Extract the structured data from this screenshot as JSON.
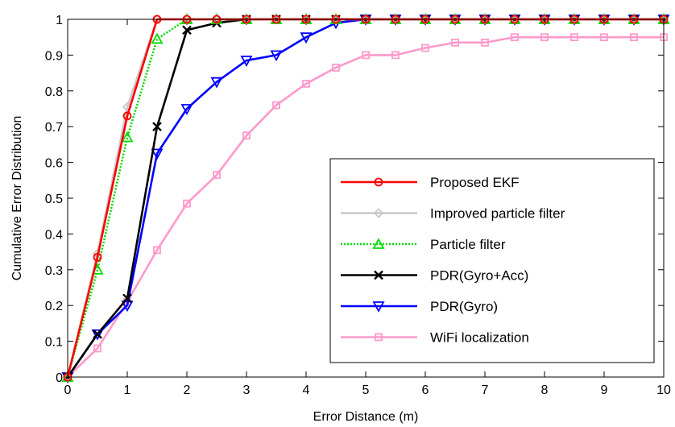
{
  "chart_data": {
    "type": "line",
    "xlabel": "Error Distance (m)",
    "ylabel": "Cumulative Error Distribution",
    "xlim": [
      0,
      10
    ],
    "ylim": [
      0,
      1
    ],
    "xticks": [
      0,
      1,
      2,
      3,
      4,
      5,
      6,
      7,
      8,
      9,
      10
    ],
    "yticks": [
      0,
      0.1,
      0.2,
      0.3,
      0.4,
      0.5,
      0.6,
      0.7,
      0.8,
      0.9,
      1
    ],
    "grid": false,
    "legend_position": "bottom-right",
    "series": [
      {
        "name": "Proposed EKF",
        "color": "#ff0000",
        "marker": "circle",
        "dash": "solid",
        "x": [
          0,
          0.5,
          1,
          1.5,
          2,
          2.5,
          3,
          3.5,
          4,
          4.5,
          5,
          5.5,
          6,
          6.5,
          7,
          7.5,
          8,
          8.5,
          9,
          9.5,
          10
        ],
        "y": [
          0,
          0.335,
          0.73,
          1,
          1,
          1,
          1,
          1,
          1,
          1,
          1,
          1,
          1,
          1,
          1,
          1,
          1,
          1,
          1,
          1,
          1
        ]
      },
      {
        "name": "Improved particle filter",
        "color": "#c8c8c8",
        "marker": "diamond",
        "dash": "solid",
        "x": [
          0,
          0.5,
          1,
          1.5,
          2,
          2.5,
          3,
          3.5,
          4,
          4.5,
          5,
          5.5,
          6,
          6.5,
          7,
          7.5,
          8,
          8.5,
          9,
          9.5,
          10
        ],
        "y": [
          0,
          0.345,
          0.755,
          1,
          1,
          1,
          1,
          1,
          1,
          1,
          1,
          1,
          1,
          1,
          1,
          1,
          1,
          1,
          1,
          1,
          1
        ]
      },
      {
        "name": "Particle filter",
        "color": "#00dd00",
        "marker": "triangle-up",
        "dash": "dotted",
        "x": [
          0,
          0.5,
          1,
          1.5,
          2,
          2.5,
          3,
          3.5,
          4,
          4.5,
          5,
          5.5,
          6,
          6.5,
          7,
          7.5,
          8,
          8.5,
          9,
          9.5,
          10
        ],
        "y": [
          0,
          0.3,
          0.67,
          0.945,
          1,
          1,
          1,
          1,
          1,
          1,
          1,
          1,
          1,
          1,
          1,
          1,
          1,
          1,
          1,
          1,
          1
        ]
      },
      {
        "name": "PDR(Gyro+Acc)",
        "color": "#000000",
        "marker": "x",
        "dash": "solid",
        "x": [
          0,
          0.5,
          1,
          1.5,
          2,
          2.5,
          3,
          3.5,
          4,
          4.5,
          5,
          5.5,
          6,
          6.5,
          7,
          7.5,
          8,
          8.5,
          9,
          9.5,
          10
        ],
        "y": [
          0,
          0.12,
          0.22,
          0.7,
          0.97,
          0.99,
          1,
          1,
          1,
          1,
          1,
          1,
          1,
          1,
          1,
          1,
          1,
          1,
          1,
          1,
          1
        ]
      },
      {
        "name": "PDR(Gyro)",
        "color": "#0000ff",
        "marker": "triangle-down",
        "dash": "solid",
        "x": [
          0,
          0.5,
          1,
          1.5,
          2,
          2.5,
          3,
          3.5,
          4,
          4.5,
          5,
          5.5,
          6,
          6.5,
          7,
          7.5,
          8,
          8.5,
          9,
          9.5,
          10
        ],
        "y": [
          0,
          0.12,
          0.2,
          0.625,
          0.75,
          0.825,
          0.885,
          0.9,
          0.95,
          0.99,
          1,
          1,
          1,
          1,
          1,
          1,
          1,
          1,
          1,
          1,
          1
        ]
      },
      {
        "name": "WiFi localization",
        "color": "#ff99cc",
        "marker": "square",
        "dash": "solid",
        "x": [
          0,
          0.5,
          1,
          1.5,
          2,
          2.5,
          3,
          3.5,
          4,
          4.5,
          5,
          5.5,
          6,
          6.5,
          7,
          7.5,
          8,
          8.5,
          9,
          9.5,
          10
        ],
        "y": [
          0,
          0.08,
          0.21,
          0.355,
          0.485,
          0.565,
          0.675,
          0.76,
          0.82,
          0.865,
          0.9,
          0.9,
          0.92,
          0.935,
          0.935,
          0.95,
          0.95,
          0.95,
          0.95,
          0.95,
          0.95
        ]
      }
    ]
  }
}
